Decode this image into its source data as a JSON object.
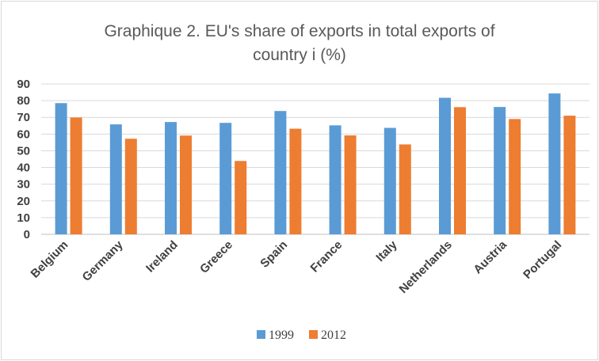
{
  "chart_data": {
    "type": "bar",
    "title_lines": [
      "Graphique 2. EU's share of exports in total exports of",
      "country i (%)"
    ],
    "categories": [
      "Belgium",
      "Germany",
      "Ireland",
      "Greece",
      "Spain",
      "France",
      "Italy",
      "Netherlands",
      "Austria",
      "Portugal"
    ],
    "series": [
      {
        "name": "1999",
        "color": "#5b9bd5",
        "values": [
          78.5,
          65.8,
          67.2,
          66.7,
          73.8,
          65.2,
          63.7,
          81.7,
          76.2,
          84.3
        ]
      },
      {
        "name": "2012",
        "color": "#ed7d31",
        "values": [
          69.9,
          57.2,
          59.1,
          43.9,
          63.2,
          59.2,
          53.8,
          76.1,
          69.0,
          71.0
        ]
      }
    ],
    "yticks": [
      0,
      10,
      20,
      30,
      40,
      50,
      60,
      70,
      80,
      90
    ],
    "ylim": [
      0,
      90
    ],
    "grid": true,
    "legend_position": "bottom",
    "xlabel": "",
    "ylabel": ""
  }
}
